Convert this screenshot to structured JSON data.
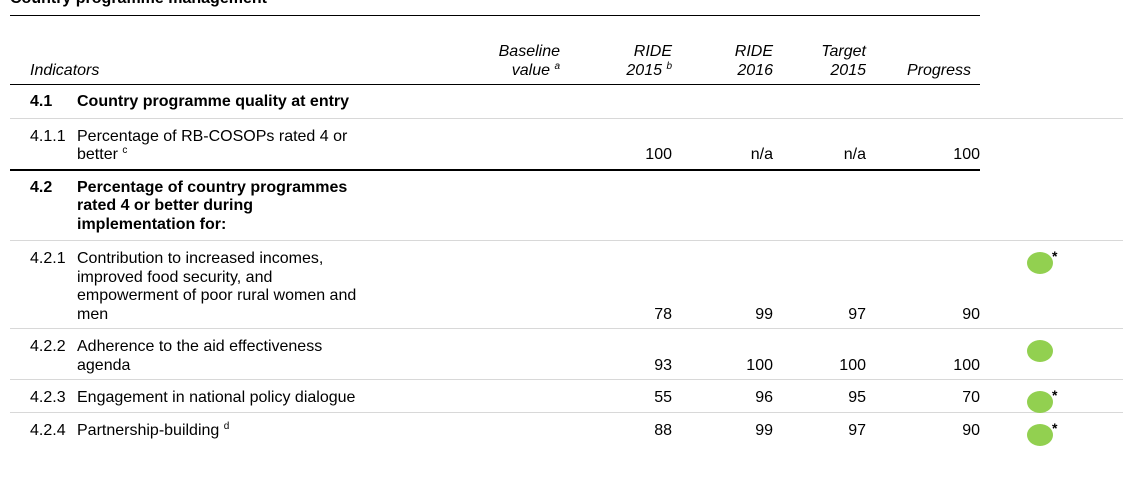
{
  "title": "Country programme management",
  "columns": [
    {
      "text": "Indicators"
    },
    {
      "lines": [
        "Baseline",
        "value"
      ],
      "note": "a"
    },
    {
      "lines": [
        "RIDE",
        "2015"
      ],
      "note": "b"
    },
    {
      "lines": [
        "RIDE",
        "2016"
      ]
    },
    {
      "lines": [
        "Target",
        "2015"
      ]
    },
    {
      "text": "Progress"
    }
  ],
  "progress_color": "#92d050",
  "sections": [
    {
      "code": "4.1",
      "label": "Country programme quality at entry",
      "rows": [
        {
          "code": "4.1.1",
          "label": "Percentage of RB-COSOPs rated 4 or better",
          "note": "c",
          "values": [
            100,
            "n/a",
            "n/a",
            100
          ]
        }
      ]
    },
    {
      "code": "4.2",
      "label": "Percentage of country programmes rated 4 or better during implementation for:",
      "rows": [
        {
          "code": "4.2.1",
          "label": "Contribution to increased incomes, improved food security, and empowerment of poor rural women and men",
          "values": [
            78,
            99,
            97,
            90
          ],
          "progress": true,
          "progress_mark": "*"
        },
        {
          "code": "4.2.2",
          "label": "Adherence to the aid effectiveness agenda",
          "values": [
            93,
            100,
            100,
            100
          ],
          "progress": true
        },
        {
          "code": "4.2.3",
          "label": "Engagement in national policy dialogue",
          "values": [
            55,
            96,
            95,
            70
          ],
          "progress": true,
          "progress_mark": "*"
        },
        {
          "code": "4.2.4",
          "label": "Partnership-building",
          "note": "d",
          "values": [
            88,
            99,
            97,
            90
          ],
          "progress": true,
          "progress_mark": "*"
        }
      ]
    }
  ]
}
